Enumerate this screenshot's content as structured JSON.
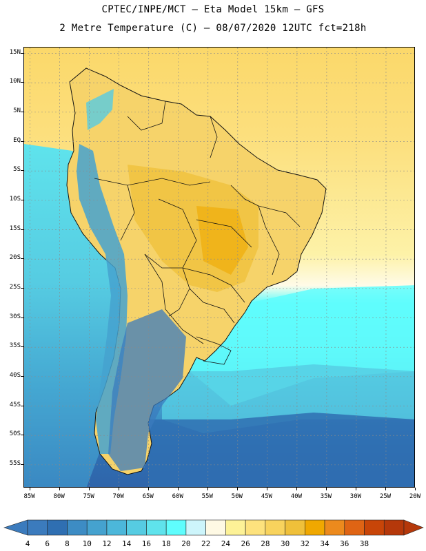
{
  "header": {
    "line1": "CPTEC/INPE/MCT –  Eta Model 15km – GFS",
    "line2": "2 Metre Temperature (C) – 08/07/2020 12UTC fct=218h"
  },
  "map": {
    "lon_range": [
      -86,
      -20
    ],
    "lat_range": [
      -59,
      16
    ],
    "lat_labels": [
      {
        "text": "15N",
        "lat": 15
      },
      {
        "text": "10N",
        "lat": 10
      },
      {
        "text": "5N",
        "lat": 5
      },
      {
        "text": "EQ",
        "lat": 0
      },
      {
        "text": "5S",
        "lat": -5
      },
      {
        "text": "10S",
        "lat": -10
      },
      {
        "text": "15S",
        "lat": -15
      },
      {
        "text": "20S",
        "lat": -20
      },
      {
        "text": "25S",
        "lat": -25
      },
      {
        "text": "30S",
        "lat": -30
      },
      {
        "text": "35S",
        "lat": -35
      },
      {
        "text": "40S",
        "lat": -40
      },
      {
        "text": "45S",
        "lat": -45
      },
      {
        "text": "50S",
        "lat": -50
      },
      {
        "text": "55S",
        "lat": -55
      }
    ],
    "lon_labels": [
      {
        "text": "85W",
        "lon": -85
      },
      {
        "text": "80W",
        "lon": -80
      },
      {
        "text": "75W",
        "lon": -75
      },
      {
        "text": "70W",
        "lon": -70
      },
      {
        "text": "65W",
        "lon": -65
      },
      {
        "text": "60W",
        "lon": -60
      },
      {
        "text": "55W",
        "lon": -55
      },
      {
        "text": "50W",
        "lon": -50
      },
      {
        "text": "45W",
        "lon": -45
      },
      {
        "text": "40W",
        "lon": -40
      },
      {
        "text": "35W",
        "lon": -35
      },
      {
        "text": "30W",
        "lon": -30
      },
      {
        "text": "25W",
        "lon": -25
      },
      {
        "text": "20W",
        "lon": -20
      }
    ]
  },
  "colorbar": {
    "labels": [
      "4",
      "6",
      "8",
      "10",
      "12",
      "14",
      "16",
      "18",
      "20",
      "22",
      "24",
      "26",
      "28",
      "30",
      "32",
      "34",
      "36",
      "38"
    ],
    "colors": [
      "#3b7bbd",
      "#2f6fb2",
      "#3d8cc4",
      "#45a2cf",
      "#4cb7da",
      "#56cce2",
      "#5fe3ec",
      "#5ffdfd",
      "#cdf5fb",
      "#fef9e4",
      "#fdf297",
      "#fde27d",
      "#f8d35d",
      "#efc03a",
      "#f0a800",
      "#ec8a1d",
      "#df6414",
      "#c84508",
      "#b5380a"
    ]
  }
}
